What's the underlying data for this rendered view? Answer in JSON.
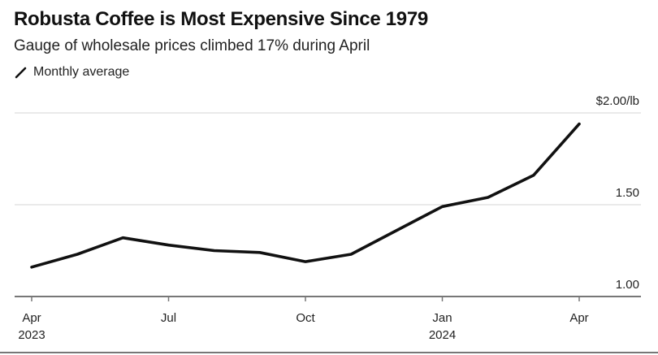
{
  "header": {
    "title": "Robusta Coffee is Most Expensive Since 1979",
    "subtitle": "Gauge of wholesale prices climbed 17% during April",
    "legend_label": "Monthly average",
    "legend_icon": "line-swatch-icon"
  },
  "colors": {
    "line": "#111111",
    "grid": "#e3e3e3",
    "axis": "#777777",
    "text": "#222222"
  },
  "chart_data": {
    "type": "line",
    "title": "Robusta Coffee is Most Expensive Since 1979",
    "subtitle": "Gauge of wholesale prices climbed 17% during April",
    "xlabel": "",
    "ylabel": "$/lb",
    "x": [
      "2023-04",
      "2023-05",
      "2023-06",
      "2023-07",
      "2023-08",
      "2023-09",
      "2023-10",
      "2023-11",
      "2023-12",
      "2024-01",
      "2024-02",
      "2024-03",
      "2024-04"
    ],
    "series": [
      {
        "name": "Monthly average",
        "values": [
          1.16,
          1.23,
          1.32,
          1.28,
          1.25,
          1.24,
          1.19,
          1.23,
          1.36,
          1.49,
          1.54,
          1.66,
          1.94
        ]
      }
    ],
    "ylim": [
      1.0,
      2.0
    ],
    "yticks": [
      {
        "value": 1.0,
        "label": "1.00"
      },
      {
        "value": 1.5,
        "label": "1.50"
      },
      {
        "value": 2.0,
        "label": "$2.00/lb"
      }
    ],
    "xticks": [
      {
        "index": 0,
        "label": "Apr",
        "sublabel": "2023"
      },
      {
        "index": 3,
        "label": "Jul",
        "sublabel": ""
      },
      {
        "index": 6,
        "label": "Oct",
        "sublabel": ""
      },
      {
        "index": 9,
        "label": "Jan",
        "sublabel": "2024"
      },
      {
        "index": 12,
        "label": "Apr",
        "sublabel": ""
      }
    ],
    "grid": true,
    "legend": "top-left",
    "yaxis_position": "right"
  }
}
